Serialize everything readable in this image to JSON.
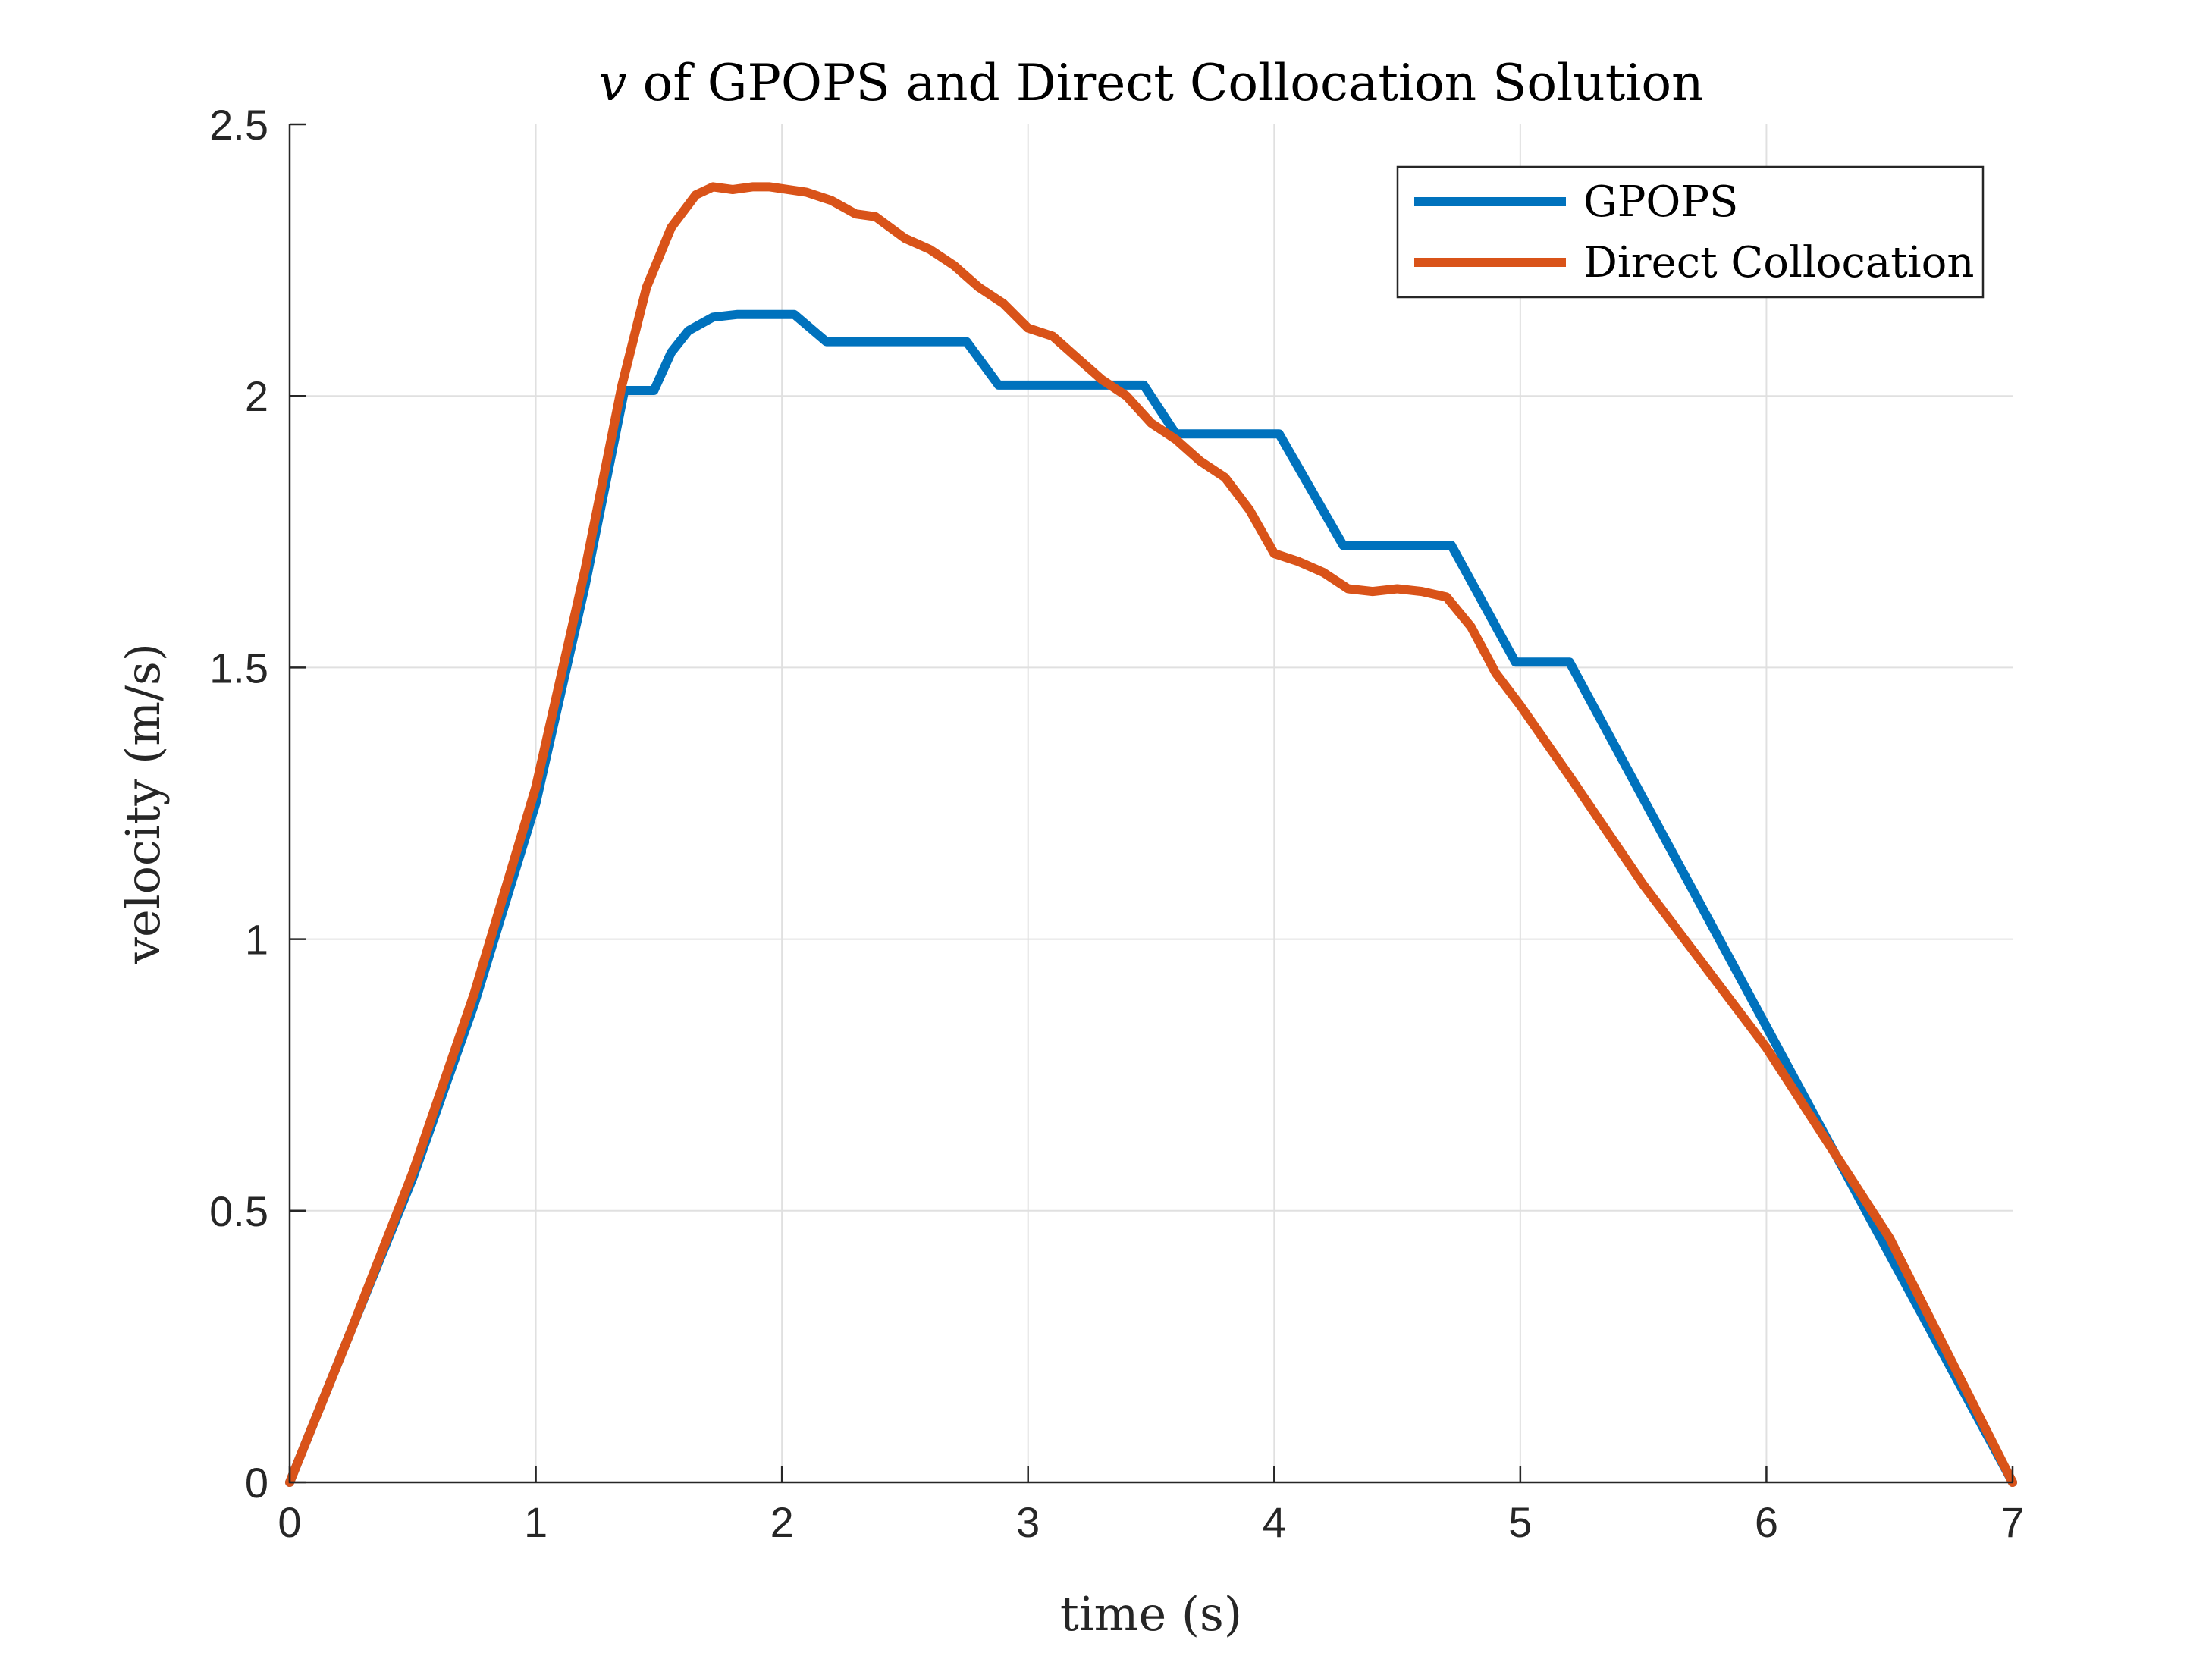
{
  "chart_data": {
    "type": "line",
    "title_var": "v",
    "title_rest": " of GPOPS and Direct Collocation Solution",
    "xlabel": "time (s)",
    "ylabel": "velocity (m/s)",
    "xlim": [
      0,
      7
    ],
    "ylim": [
      0,
      2.5
    ],
    "xticks": [
      0,
      1,
      2,
      3,
      4,
      5,
      6,
      7
    ],
    "yticks": [
      0,
      0.5,
      1,
      1.5,
      2,
      2.5
    ],
    "xtick_labels": [
      "0",
      "1",
      "2",
      "3",
      "4",
      "5",
      "6",
      "7"
    ],
    "ytick_labels": [
      "0",
      "0.5",
      "1",
      "1.5",
      "2",
      "2.5"
    ],
    "grid": true,
    "legend_position": "top-right",
    "series": [
      {
        "name": "GPOPS",
        "color": "#0072BD",
        "x": [
          0,
          0.25,
          0.5,
          0.75,
          1.0,
          1.2,
          1.36,
          1.48,
          1.55,
          1.62,
          1.72,
          1.82,
          2.05,
          2.18,
          2.75,
          2.88,
          3.47,
          3.6,
          4.02,
          4.28,
          4.72,
          4.98,
          5.2,
          7.0
        ],
        "y": [
          0,
          0.28,
          0.56,
          0.88,
          1.25,
          1.65,
          2.01,
          2.01,
          2.08,
          2.12,
          2.145,
          2.15,
          2.15,
          2.1,
          2.1,
          2.02,
          2.02,
          1.93,
          1.93,
          1.725,
          1.725,
          1.51,
          1.51,
          0
        ]
      },
      {
        "name": "Direct Collocation",
        "color": "#D95319",
        "x": [
          0,
          0.25,
          0.5,
          0.75,
          1.0,
          1.2,
          1.35,
          1.45,
          1.55,
          1.65,
          1.72,
          1.8,
          1.88,
          1.95,
          2.1,
          2.2,
          2.3,
          2.38,
          2.5,
          2.6,
          2.7,
          2.8,
          2.9,
          3.0,
          3.1,
          3.2,
          3.3,
          3.4,
          3.5,
          3.6,
          3.7,
          3.8,
          3.9,
          4.0,
          4.1,
          4.2,
          4.3,
          4.4,
          4.5,
          4.6,
          4.7,
          4.8,
          4.9,
          5.0,
          5.2,
          5.5,
          6.0,
          6.5,
          7.0
        ],
        "y": [
          0,
          0.28,
          0.57,
          0.9,
          1.28,
          1.68,
          2.02,
          2.2,
          2.31,
          2.37,
          2.385,
          2.38,
          2.385,
          2.385,
          2.375,
          2.36,
          2.335,
          2.33,
          2.29,
          2.27,
          2.24,
          2.2,
          2.17,
          2.125,
          2.11,
          2.07,
          2.03,
          2.0,
          1.95,
          1.92,
          1.88,
          1.85,
          1.79,
          1.71,
          1.695,
          1.675,
          1.645,
          1.64,
          1.645,
          1.64,
          1.63,
          1.575,
          1.49,
          1.43,
          1.3,
          1.1,
          0.8,
          0.45,
          0
        ]
      }
    ]
  }
}
